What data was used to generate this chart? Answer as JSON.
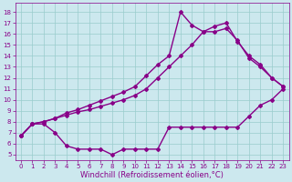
{
  "xlabel": "Windchill (Refroidissement éolien,°C)",
  "bg_color": "#cce8ee",
  "line_color": "#880088",
  "grid_color": "#99cccc",
  "x_ticks": [
    0,
    1,
    2,
    3,
    4,
    5,
    6,
    7,
    8,
    9,
    10,
    11,
    12,
    13,
    14,
    15,
    16,
    17,
    18,
    19,
    20,
    21,
    22,
    23
  ],
  "y_ticks": [
    5,
    6,
    7,
    8,
    9,
    10,
    11,
    12,
    13,
    14,
    15,
    16,
    17,
    18
  ],
  "ylim": [
    4.5,
    18.8
  ],
  "xlim": [
    -0.5,
    23.5
  ],
  "line1_x": [
    0,
    1,
    2,
    3,
    4,
    5,
    6,
    7,
    8,
    9,
    10,
    11,
    12,
    13,
    14,
    15,
    16,
    17,
    18,
    19,
    20,
    21,
    22,
    23
  ],
  "line1_y": [
    6.7,
    7.8,
    7.8,
    7.0,
    5.8,
    5.5,
    5.5,
    5.5,
    5.0,
    5.5,
    5.5,
    5.5,
    5.5,
    7.5,
    7.5,
    7.5,
    7.5,
    7.5,
    7.5,
    7.5,
    8.5,
    9.5,
    10.0,
    11.0
  ],
  "line2_x": [
    0,
    1,
    2,
    3,
    4,
    5,
    6,
    7,
    8,
    9,
    10,
    11,
    12,
    13,
    14,
    15,
    16,
    17,
    18,
    19,
    20,
    21,
    22,
    23
  ],
  "line2_y": [
    6.7,
    7.8,
    8.0,
    8.3,
    8.6,
    8.9,
    9.1,
    9.4,
    9.7,
    10.0,
    10.4,
    11.0,
    12.0,
    13.0,
    14.0,
    15.0,
    16.2,
    16.2,
    16.5,
    15.4,
    13.8,
    13.0,
    12.0,
    11.2
  ],
  "line3_x": [
    0,
    1,
    2,
    3,
    4,
    5,
    6,
    7,
    8,
    9,
    10,
    11,
    12,
    13,
    14,
    15,
    16,
    17,
    18,
    19,
    20,
    21,
    22,
    23
  ],
  "line3_y": [
    6.7,
    7.8,
    8.0,
    8.3,
    8.8,
    9.1,
    9.5,
    9.9,
    10.3,
    10.7,
    11.2,
    12.2,
    13.2,
    14.0,
    18.0,
    16.8,
    16.2,
    16.7,
    17.0,
    15.3,
    14.0,
    13.2,
    12.0,
    11.2
  ],
  "marker": "D",
  "marker_size": 2.0,
  "line_width": 1.0,
  "tick_fontsize": 5.0,
  "label_fontsize": 6.0
}
